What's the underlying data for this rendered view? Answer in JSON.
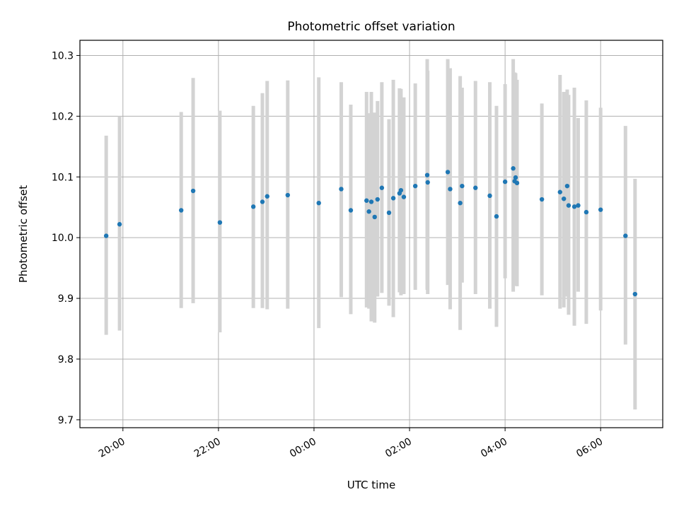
{
  "chart_data": {
    "type": "scatter",
    "title": "Photometric offset variation",
    "xlabel": "UTC time",
    "ylabel": "Photometric offset",
    "x_tick_labels": [
      "20:00",
      "22:00",
      "00:00",
      "02:00",
      "04:00",
      "06:00"
    ],
    "x_ticks_hours": [
      20,
      22,
      24,
      26,
      28,
      30
    ],
    "y_ticks": [
      9.7,
      9.8,
      9.9,
      10.0,
      10.1,
      10.2,
      10.3
    ],
    "y_tick_labels": [
      "9.7",
      "9.8",
      "9.9",
      "10.0",
      "10.1",
      "10.2",
      "10.3"
    ],
    "xlim_hours": [
      19.1,
      31.3
    ],
    "ylim": [
      9.687,
      10.325
    ],
    "grid": true,
    "marker_color": "#1f77b4",
    "errorbar_color": "#d3d3d3",
    "x_hours": [
      19.65,
      19.93,
      21.22,
      21.47,
      22.03,
      22.73,
      22.92,
      23.02,
      23.45,
      24.1,
      24.57,
      24.77,
      25.1,
      25.15,
      25.2,
      25.27,
      25.33,
      25.42,
      25.57,
      25.66,
      25.79,
      25.82,
      25.88,
      26.12,
      26.37,
      26.38,
      26.8,
      26.85,
      27.06,
      27.1,
      27.38,
      27.68,
      27.82,
      28.0,
      28.17,
      28.2,
      28.22,
      28.25,
      28.77,
      29.15,
      29.23,
      29.3,
      29.33,
      29.45,
      29.53,
      29.7,
      30.0,
      30.52,
      30.72
    ],
    "y": [
      10.003,
      10.022,
      10.045,
      10.077,
      10.025,
      10.051,
      10.059,
      10.068,
      10.07,
      10.057,
      10.08,
      10.045,
      10.061,
      10.043,
      10.059,
      10.034,
      10.063,
      10.082,
      10.041,
      10.065,
      10.073,
      10.078,
      10.067,
      10.085,
      10.103,
      10.091,
      10.108,
      10.08,
      10.057,
      10.085,
      10.082,
      10.069,
      10.035,
      10.092,
      10.114,
      10.093,
      10.099,
      10.09,
      10.063,
      10.075,
      10.064,
      10.085,
      10.053,
      10.051,
      10.053,
      10.042,
      10.046,
      10.003,
      9.907
    ],
    "yerr_low": [
      9.84,
      9.847,
      9.884,
      9.892,
      9.844,
      9.884,
      9.884,
      9.882,
      9.883,
      9.851,
      9.902,
      9.874,
      9.885,
      9.883,
      9.862,
      9.86,
      9.903,
      9.909,
      9.888,
      9.869,
      9.91,
      9.905,
      9.907,
      9.914,
      9.914,
      9.907,
      9.922,
      9.882,
      9.848,
      9.926,
      9.907,
      9.883,
      9.853,
      9.933,
      9.911,
      9.921,
      9.921,
      9.92,
      9.905,
      9.883,
      9.885,
      9.903,
      9.873,
      9.855,
      9.911,
      9.858,
      9.88,
      9.824,
      9.717
    ],
    "yerr_high": [
      10.168,
      10.2,
      10.207,
      10.263,
      10.209,
      10.217,
      10.238,
      10.258,
      10.259,
      10.264,
      10.256,
      10.219,
      10.24,
      10.205,
      10.24,
      10.206,
      10.225,
      10.256,
      10.195,
      10.26,
      10.246,
      10.245,
      10.231,
      10.254,
      10.294,
      10.275,
      10.294,
      10.279,
      10.266,
      10.247,
      10.258,
      10.256,
      10.217,
      10.253,
      10.294,
      10.272,
      10.271,
      10.26,
      10.221,
      10.268,
      10.24,
      10.244,
      10.235,
      10.247,
      10.197,
      10.226,
      10.214,
      10.184,
      10.097
    ]
  }
}
